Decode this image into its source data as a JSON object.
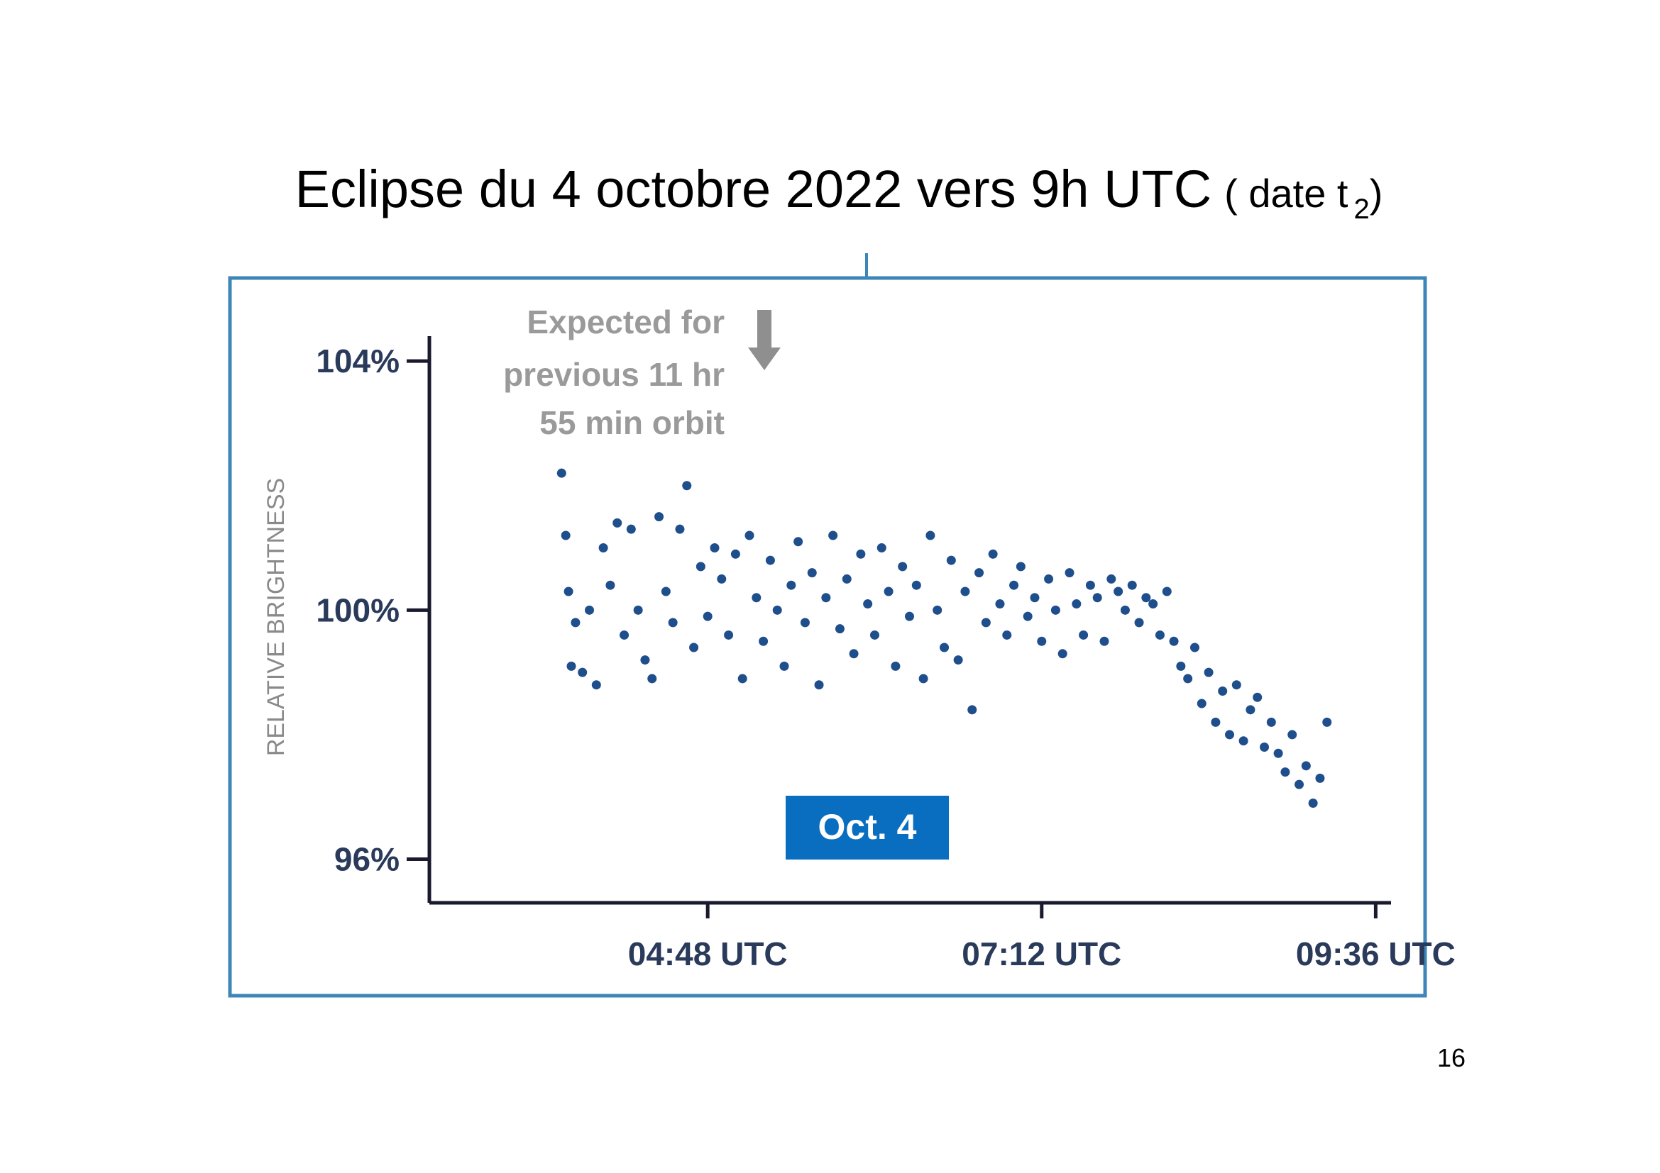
{
  "chart_data": {
    "type": "scatter",
    "title": "Eclipse du 4 octobre 2022 vers 9h UTC",
    "title_note": "( date t",
    "title_subscript": "2",
    "title_close": ")",
    "ylabel": "RELATIVE BRIGHTNESS",
    "annotation": [
      "Expected for",
      "previous 11 hr",
      "55 min orbit"
    ],
    "legend_box": "Oct. 4",
    "page_number": "16",
    "color": "#1f4e8c",
    "xlim": [
      2.8,
      9.7
    ],
    "ylim": [
      95.3,
      104.4
    ],
    "xticks": [
      {
        "value": 4.8,
        "label": "04:48 UTC"
      },
      {
        "value": 7.2,
        "label": "07:12 UTC"
      },
      {
        "value": 9.6,
        "label": "09:36 UTC"
      }
    ],
    "yticks": [
      {
        "value": 104,
        "label": "104%"
      },
      {
        "value": 100,
        "label": "100%"
      },
      {
        "value": 96,
        "label": "96%"
      }
    ],
    "x": [
      3.75,
      3.78,
      3.8,
      3.82,
      3.85,
      3.9,
      3.95,
      4.0,
      4.05,
      4.1,
      4.15,
      4.2,
      4.25,
      4.3,
      4.35,
      4.4,
      4.45,
      4.5,
      4.55,
      4.6,
      4.65,
      4.7,
      4.75,
      4.8,
      4.85,
      4.9,
      4.95,
      5.0,
      5.05,
      5.1,
      5.15,
      5.2,
      5.25,
      5.3,
      5.35,
      5.4,
      5.45,
      5.5,
      5.55,
      5.6,
      5.65,
      5.7,
      5.75,
      5.8,
      5.85,
      5.9,
      5.95,
      6.0,
      6.05,
      6.1,
      6.15,
      6.2,
      6.25,
      6.3,
      6.35,
      6.4,
      6.45,
      6.5,
      6.55,
      6.6,
      6.65,
      6.7,
      6.75,
      6.8,
      6.85,
      6.9,
      6.95,
      7.0,
      7.05,
      7.1,
      7.15,
      7.2,
      7.25,
      7.3,
      7.35,
      7.4,
      7.45,
      7.5,
      7.55,
      7.6,
      7.65,
      7.7,
      7.75,
      7.8,
      7.85,
      7.9,
      7.95,
      8.0,
      8.05,
      8.1,
      8.15,
      8.2,
      8.25,
      8.3,
      8.35,
      8.4,
      8.45,
      8.5,
      8.55,
      8.6,
      8.65,
      8.7,
      8.75,
      8.8,
      8.85,
      8.9,
      8.95,
      9.0,
      9.05,
      9.1,
      9.15,
      9.2,
      9.25
    ],
    "values": [
      102.2,
      101.2,
      100.3,
      99.1,
      99.8,
      99.0,
      100.0,
      98.8,
      101.0,
      100.4,
      101.4,
      99.6,
      101.3,
      100.0,
      99.2,
      98.9,
      101.5,
      100.3,
      99.8,
      101.3,
      102.0,
      99.4,
      100.7,
      99.9,
      101.0,
      100.5,
      99.6,
      100.9,
      98.9,
      101.2,
      100.2,
      99.5,
      100.8,
      100.0,
      99.1,
      100.4,
      101.1,
      99.8,
      100.6,
      98.8,
      100.2,
      101.2,
      99.7,
      100.5,
      99.3,
      100.9,
      100.1,
      99.6,
      101.0,
      100.3,
      99.1,
      100.7,
      99.9,
      100.4,
      98.9,
      101.2,
      100.0,
      99.4,
      100.8,
      99.2,
      100.3,
      98.4,
      100.6,
      99.8,
      100.9,
      100.1,
      99.6,
      100.4,
      100.7,
      99.9,
      100.2,
      99.5,
      100.5,
      100.0,
      99.3,
      100.6,
      100.1,
      99.6,
      100.4,
      100.2,
      99.5,
      100.5,
      100.3,
      100.0,
      100.4,
      99.8,
      100.2,
      100.1,
      99.6,
      100.3,
      99.5,
      99.1,
      98.9,
      99.4,
      98.5,
      99.0,
      98.2,
      98.7,
      98.0,
      98.8,
      97.9,
      98.4,
      98.6,
      97.8,
      98.2,
      97.7,
      97.4,
      98.0,
      97.2,
      97.5,
      96.9,
      97.3,
      98.2
    ]
  }
}
